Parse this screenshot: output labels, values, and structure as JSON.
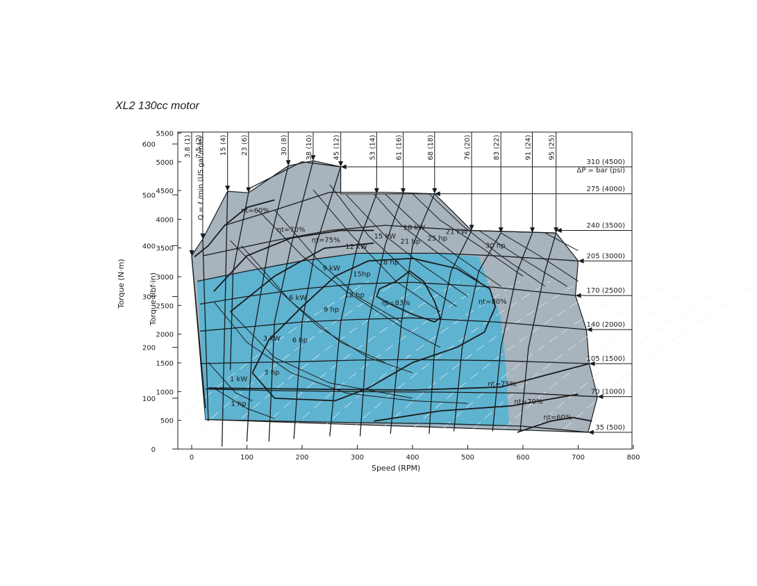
{
  "chart_data": {
    "type": "line",
    "title": "XL2 130cc motor",
    "xlabel": "Speed (RPM)",
    "ylabel_left": "Torque (N·m)",
    "ylabel_inner": "Torque (lbf·in)",
    "xlim": [
      -50,
      800
    ],
    "x_ticks": [
      0,
      100,
      200,
      300,
      400,
      500,
      600,
      700,
      800
    ],
    "ylim_nm": [
      0,
      620
    ],
    "y_ticks_nm": [
      0,
      100,
      200,
      300,
      400,
      500,
      600
    ],
    "y_ticks_lbfin": [
      500,
      1000,
      1500,
      2000,
      2500,
      3000,
      3500,
      4000,
      4500,
      5000,
      5500
    ],
    "grid": false,
    "flow_axis_label": "Q = ℓ /min (US gal /min)",
    "flow_lines": [
      {
        "label": "3.8 (1)",
        "x_top": 0,
        "path": [
          [
            0,
            380
          ],
          [
            25,
            80
          ]
        ]
      },
      {
        "label": "7.5 (2)",
        "x_top": 20,
        "path": [
          [
            20,
            413
          ],
          [
            30,
            55
          ]
        ]
      },
      {
        "label": "15 (4)",
        "x_top": 65,
        "path": [
          [
            65,
            507
          ],
          [
            55,
            5
          ]
        ]
      },
      {
        "label": "23 (6)",
        "x_top": 103,
        "path": [
          [
            103,
            504
          ],
          [
            75,
            350
          ],
          [
            70,
            155
          ]
        ]
      },
      {
        "label": "30 (8)",
        "x_top": 175,
        "path": [
          [
            175,
            557
          ],
          [
            140,
            400
          ],
          [
            110,
            210
          ],
          [
            100,
            15
          ]
        ]
      },
      {
        "label": "38 (10)",
        "x_top": 220,
        "path": [
          [
            220,
            567
          ],
          [
            180,
            400
          ],
          [
            150,
            250
          ],
          [
            140,
            15
          ]
        ]
      },
      {
        "label": "45 (12)",
        "x_top": 270,
        "path": [
          [
            270,
            555
          ],
          [
            225,
            400
          ],
          [
            200,
            250
          ],
          [
            185,
            20
          ]
        ]
      },
      {
        "label": "53 (14)",
        "x_top": 335,
        "path": [
          [
            335,
            502
          ],
          [
            300,
            400
          ],
          [
            270,
            250
          ],
          [
            250,
            25
          ]
        ]
      },
      {
        "label": "61 (16)",
        "x_top": 383,
        "path": [
          [
            383,
            502
          ],
          [
            350,
            400
          ],
          [
            320,
            250
          ],
          [
            305,
            25
          ]
        ]
      },
      {
        "label": "68 (18)",
        "x_top": 440,
        "path": [
          [
            440,
            502
          ],
          [
            400,
            400
          ],
          [
            380,
            250
          ],
          [
            360,
            30
          ]
        ]
      },
      {
        "label": "76 (20)",
        "x_top": 507,
        "path": [
          [
            507,
            430
          ],
          [
            470,
            350
          ],
          [
            440,
            200
          ],
          [
            430,
            30
          ]
        ]
      },
      {
        "label": "83 (22)",
        "x_top": 560,
        "path": [
          [
            560,
            425
          ],
          [
            520,
            350
          ],
          [
            490,
            200
          ],
          [
            475,
            35
          ]
        ]
      },
      {
        "label": "91 (24)",
        "x_top": 617,
        "path": [
          [
            617,
            425
          ],
          [
            590,
            350
          ],
          [
            560,
            200
          ],
          [
            545,
            35
          ]
        ]
      },
      {
        "label": "95 (25)",
        "x_top": 660,
        "path": [
          [
            660,
            425
          ],
          [
            640,
            350
          ],
          [
            610,
            200
          ],
          [
            595,
            35
          ]
        ]
      }
    ],
    "pressure_lines": [
      {
        "label": "310 (4500)",
        "torque_nm": 555,
        "path": [
          [
            270,
            555
          ],
          [
            200,
            565
          ],
          [
            100,
            510
          ]
        ]
      },
      {
        "label": "275 (4000)",
        "torque_nm": 502,
        "path": [
          [
            440,
            502
          ],
          [
            350,
            505
          ],
          [
            250,
            505
          ],
          [
            150,
            470
          ],
          [
            60,
            440
          ]
        ]
      },
      {
        "label": "240 (3500)",
        "torque_nm": 430,
        "path": [
          [
            660,
            425
          ],
          [
            500,
            430
          ],
          [
            350,
            440
          ],
          [
            250,
            430
          ],
          [
            150,
            410
          ],
          [
            20,
            380
          ]
        ]
      },
      {
        "label": "205 (3000)",
        "torque_nm": 370,
        "path": [
          [
            700,
            370
          ],
          [
            550,
            380
          ],
          [
            450,
            385
          ],
          [
            300,
            385
          ],
          [
            200,
            370
          ],
          [
            100,
            350
          ],
          [
            10,
            330
          ]
        ]
      },
      {
        "label": "170 (2500)",
        "torque_nm": 302,
        "path": [
          [
            695,
            302
          ],
          [
            550,
            318
          ],
          [
            400,
            328
          ],
          [
            300,
            325
          ],
          [
            200,
            315
          ],
          [
            100,
            300
          ],
          [
            15,
            285
          ]
        ]
      },
      {
        "label": "140 (2000)",
        "torque_nm": 235,
        "path": [
          [
            715,
            235
          ],
          [
            550,
            250
          ],
          [
            400,
            258
          ],
          [
            300,
            255
          ],
          [
            200,
            250
          ],
          [
            100,
            240
          ],
          [
            15,
            232
          ]
        ]
      },
      {
        "label": "105 (1500)",
        "torque_nm": 168,
        "path": [
          [
            720,
            168
          ],
          [
            550,
            174
          ],
          [
            400,
            176
          ],
          [
            300,
            175
          ],
          [
            200,
            172
          ],
          [
            100,
            170
          ],
          [
            15,
            168
          ]
        ]
      },
      {
        "label": "70 (1000)",
        "torque_nm": 103,
        "path": [
          [
            735,
            103
          ],
          [
            600,
            110
          ],
          [
            450,
            112
          ],
          [
            300,
            113
          ],
          [
            150,
            115
          ],
          [
            25,
            118
          ]
        ]
      },
      {
        "label": "35 (500)",
        "torque_nm": 33,
        "path": [
          [
            718,
            33
          ],
          [
            600,
            45
          ],
          [
            450,
            50
          ],
          [
            300,
            52
          ],
          [
            150,
            55
          ],
          [
            25,
            58
          ]
        ]
      }
    ],
    "pressure_axis_label": "ΔP = bar (psi)",
    "power_lines": [
      {
        "label": "1 kW",
        "x": 85,
        "y": 133,
        "path": [
          [
            30,
            170
          ],
          [
            80,
            110
          ],
          [
            110,
            95
          ]
        ]
      },
      {
        "label": "1 hp",
        "x": 85,
        "y": 85,
        "path": [
          [
            40,
            120
          ],
          [
            100,
            80
          ],
          [
            150,
            60
          ]
        ]
      },
      {
        "label": "3 kW",
        "x": 145,
        "y": 213,
        "path": [
          [
            40,
            290
          ],
          [
            100,
            210
          ],
          [
            180,
            150
          ],
          [
            280,
            110
          ],
          [
            400,
            95
          ],
          [
            500,
            90
          ]
        ]
      },
      {
        "label": "3 hp",
        "x": 145,
        "y": 146,
        "path": [
          [
            70,
            270
          ],
          [
            150,
            180
          ],
          [
            250,
            130
          ],
          [
            400,
            100
          ]
        ]
      },
      {
        "label": "6 kW",
        "x": 192,
        "y": 293,
        "path": [
          [
            70,
            410
          ],
          [
            150,
            320
          ],
          [
            230,
            240
          ],
          [
            320,
            180
          ],
          [
            400,
            150
          ]
        ]
      },
      {
        "label": "6 hp",
        "x": 196,
        "y": 210,
        "path": [
          [
            90,
            400
          ],
          [
            180,
            290
          ],
          [
            270,
            210
          ],
          [
            350,
            170
          ]
        ]
      },
      {
        "label": "9 kW",
        "x": 253,
        "y": 351,
        "path": [
          [
            120,
            470
          ],
          [
            200,
            380
          ],
          [
            280,
            310
          ],
          [
            380,
            240
          ],
          [
            450,
            200
          ]
        ]
      },
      {
        "label": "9 hp",
        "x": 253,
        "y": 270,
        "path": [
          [
            150,
            470
          ],
          [
            230,
            370
          ],
          [
            300,
            300
          ],
          [
            380,
            250
          ]
        ]
      },
      {
        "label": "12 kW",
        "x": 298,
        "y": 394,
        "path": [
          [
            220,
            510
          ],
          [
            290,
            420
          ],
          [
            370,
            330
          ],
          [
            450,
            270
          ]
        ]
      },
      {
        "label": "12 hp",
        "x": 295,
        "y": 299,
        "path": [
          [
            250,
            520
          ],
          [
            320,
            420
          ],
          [
            400,
            340
          ],
          [
            480,
            280
          ]
        ]
      },
      {
        "label": "15hp",
        "x": 308,
        "y": 340,
        "path": [
          [
            280,
            500
          ],
          [
            350,
            420
          ],
          [
            420,
            360
          ],
          [
            500,
            300
          ]
        ]
      },
      {
        "label": "15 kW",
        "x": 350,
        "y": 414,
        "path": [
          [
            330,
            502
          ],
          [
            380,
            440
          ],
          [
            440,
            390
          ],
          [
            520,
            330
          ]
        ]
      },
      {
        "label": "18 hp",
        "x": 357,
        "y": 363,
        "path": [
          [
            350,
            502
          ],
          [
            410,
            440
          ],
          [
            480,
            380
          ],
          [
            560,
            320
          ]
        ]
      },
      {
        "label": "18 kW",
        "x": 403,
        "y": 431,
        "path": [
          [
            400,
            502
          ],
          [
            450,
            450
          ],
          [
            520,
            400
          ],
          [
            600,
            340
          ]
        ]
      },
      {
        "label": "21 hp",
        "x": 396,
        "y": 404,
        "path": [
          [
            430,
            502
          ],
          [
            490,
            440
          ],
          [
            560,
            380
          ],
          [
            640,
            320
          ]
        ]
      },
      {
        "label": "25 hp",
        "x": 445,
        "y": 410,
        "path": [
          [
            520,
            430
          ],
          [
            590,
            380
          ],
          [
            680,
            320
          ]
        ]
      },
      {
        "label": "21 kW",
        "x": 480,
        "y": 423,
        "path": [
          [
            560,
            425
          ],
          [
            630,
            380
          ],
          [
            700,
            330
          ]
        ]
      },
      {
        "label": "30 hp",
        "x": 550,
        "y": 396,
        "path": [
          [
            640,
            425
          ],
          [
            700,
            390
          ]
        ]
      }
    ],
    "efficiency_contours": [
      {
        "label": "ηt=60%",
        "lx": 115,
        "ly": 465,
        "path": [
          [
            5,
            378
          ],
          [
            30,
            400
          ],
          [
            60,
            440
          ],
          [
            100,
            475
          ],
          [
            150,
            490
          ]
        ]
      },
      {
        "label": "ηt=70%",
        "lx": 180,
        "ly": 427,
        "path": [
          [
            40,
            310
          ],
          [
            100,
            380
          ],
          [
            180,
            415
          ],
          [
            270,
            430
          ],
          [
            330,
            430
          ]
        ]
      },
      {
        "label": "ηt=75%",
        "lx": 243,
        "ly": 407,
        "path": [
          [
            70,
            270
          ],
          [
            150,
            340
          ],
          [
            240,
            395
          ],
          [
            330,
            405
          ]
        ]
      },
      {
        "label": "ηt=83%",
        "lx": 370,
        "ly": 283,
        "path": [
          [
            370,
            330
          ],
          [
            340,
            315
          ],
          [
            335,
            300
          ],
          [
            360,
            285
          ],
          [
            400,
            265
          ],
          [
            440,
            250
          ],
          [
            450,
            258
          ],
          [
            440,
            290
          ],
          [
            420,
            330
          ],
          [
            395,
            350
          ],
          [
            370,
            330
          ]
        ]
      },
      {
        "label": "ηt=80%",
        "lx": 545,
        "ly": 286,
        "path": [
          [
            110,
            150
          ],
          [
            140,
            215
          ],
          [
            200,
            280
          ],
          [
            260,
            340
          ],
          [
            320,
            370
          ],
          [
            400,
            375
          ],
          [
            480,
            355
          ],
          [
            540,
            315
          ],
          [
            550,
            280
          ],
          [
            530,
            230
          ],
          [
            480,
            200
          ],
          [
            400,
            170
          ],
          [
            320,
            120
          ],
          [
            260,
            95
          ],
          [
            150,
            100
          ],
          [
            110,
            150
          ]
        ]
      },
      {
        "label": "ηt=75%",
        "lx": 562,
        "ly": 124,
        "path": [
          [
            30,
            120
          ],
          [
            200,
            118
          ],
          [
            400,
            116
          ],
          [
            560,
            122
          ],
          [
            720,
            168
          ]
        ]
      },
      {
        "label": "ηt=70%",
        "lx": 610,
        "ly": 89,
        "path": [
          [
            330,
            55
          ],
          [
            450,
            75
          ],
          [
            580,
            85
          ],
          [
            700,
            108
          ]
        ]
      },
      {
        "label": "ηt=60%",
        "lx": 663,
        "ly": 58,
        "path": [
          [
            590,
            33
          ],
          [
            650,
            55
          ],
          [
            690,
            62
          ],
          [
            725,
            55
          ]
        ]
      }
    ],
    "regions": {
      "continuous_color": "#5eb3d0",
      "intermittent_color": "#a7b3bd",
      "line_color": "#1a1a1a"
    }
  }
}
